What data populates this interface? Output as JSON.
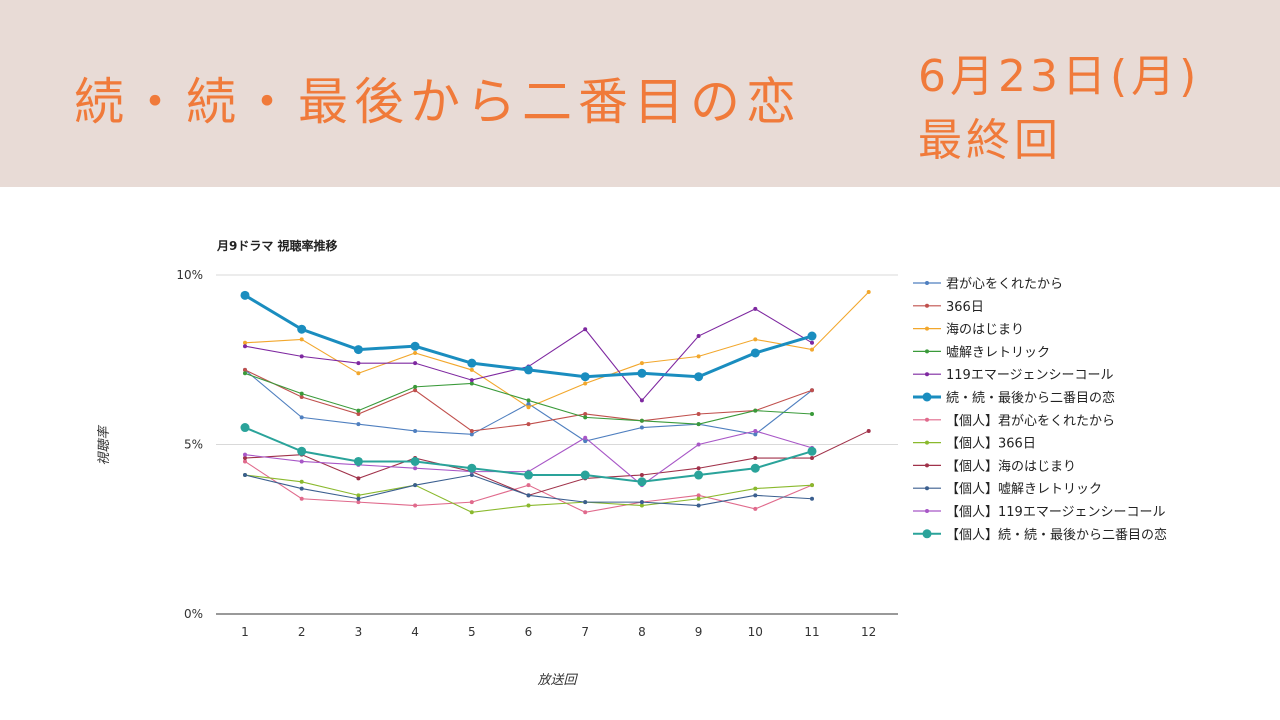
{
  "banner": {
    "title": "続・続・最後から二番目の恋",
    "date": "6月23日(月)",
    "sub": "最終回"
  },
  "colors": {
    "banner_bg": "#e8dbd6",
    "accent": "#f07a3a"
  },
  "chart_data": {
    "type": "line",
    "title": "月9ドラマ 視聴率推移",
    "xlabel": "放送回",
    "ylabel": "視聴率",
    "x": [
      1,
      2,
      3,
      4,
      5,
      6,
      7,
      8,
      9,
      10,
      11,
      12
    ],
    "ylim": [
      0,
      10
    ],
    "yticks": [
      "0%",
      "5%",
      "10%"
    ],
    "grid": true,
    "legend": "right",
    "series": [
      {
        "name": "君が心をくれたから",
        "color": "#4f7fbf",
        "highlight": false,
        "values": [
          7.2,
          5.8,
          5.6,
          5.4,
          5.3,
          6.2,
          5.1,
          5.5,
          5.6,
          5.3,
          6.6,
          null
        ]
      },
      {
        "name": "366日",
        "color": "#c0504d",
        "highlight": false,
        "values": [
          7.2,
          6.4,
          5.9,
          6.6,
          5.4,
          5.6,
          5.9,
          5.7,
          5.9,
          6.0,
          6.6,
          null
        ]
      },
      {
        "name": "海のはじまり",
        "color": "#f2a72c",
        "highlight": false,
        "values": [
          8.0,
          8.1,
          7.1,
          7.7,
          7.2,
          6.1,
          6.8,
          7.4,
          7.6,
          8.1,
          7.8,
          9.5
        ]
      },
      {
        "name": "嘘解きレトリック",
        "color": "#3a9a3a",
        "highlight": false,
        "values": [
          7.1,
          6.5,
          6.0,
          6.7,
          6.8,
          6.3,
          5.8,
          5.7,
          5.6,
          6.0,
          5.9,
          null
        ]
      },
      {
        "name": "119エマージェンシーコール",
        "color": "#7e28a0",
        "highlight": false,
        "values": [
          7.9,
          7.6,
          7.4,
          7.4,
          6.9,
          7.3,
          8.4,
          6.3,
          8.2,
          9.0,
          8.0,
          null
        ]
      },
      {
        "name": "続・続・最後から二番目の恋",
        "color": "#1a8dbf",
        "highlight": true,
        "values": [
          9.4,
          8.4,
          7.8,
          7.9,
          7.4,
          7.2,
          7.0,
          7.1,
          7.0,
          7.7,
          8.2,
          null
        ]
      },
      {
        "name": "【個人】君が心をくれたから",
        "color": "#e06a8c",
        "highlight": false,
        "values": [
          4.5,
          3.4,
          3.3,
          3.2,
          3.3,
          3.8,
          3.0,
          3.3,
          3.5,
          3.1,
          3.8,
          null
        ]
      },
      {
        "name": "【個人】366日",
        "color": "#8ab92d",
        "highlight": false,
        "values": [
          4.1,
          3.9,
          3.5,
          3.8,
          3.0,
          3.2,
          3.3,
          3.2,
          3.4,
          3.7,
          3.8,
          null
        ]
      },
      {
        "name": "【個人】海のはじまり",
        "color": "#a0324a",
        "highlight": false,
        "values": [
          4.6,
          4.7,
          4.0,
          4.6,
          4.2,
          3.5,
          4.0,
          4.1,
          4.3,
          4.6,
          4.6,
          5.4
        ]
      },
      {
        "name": "【個人】嘘解きレトリック",
        "color": "#3b5f8f",
        "highlight": false,
        "values": [
          4.1,
          3.7,
          3.4,
          3.8,
          4.1,
          3.5,
          3.3,
          3.3,
          3.2,
          3.5,
          3.4,
          null
        ]
      },
      {
        "name": "【個人】119エマージェンシーコール",
        "color": "#a857c7",
        "highlight": false,
        "values": [
          4.7,
          4.5,
          4.4,
          4.3,
          4.2,
          4.2,
          5.2,
          3.8,
          5.0,
          5.4,
          4.9,
          null
        ]
      },
      {
        "name": "【個人】続・続・最後から二番目の恋",
        "color": "#2aa39a",
        "highlight": true,
        "values": [
          5.5,
          4.8,
          4.5,
          4.5,
          4.3,
          4.1,
          4.1,
          3.9,
          4.1,
          4.3,
          4.8,
          null
        ]
      }
    ]
  }
}
